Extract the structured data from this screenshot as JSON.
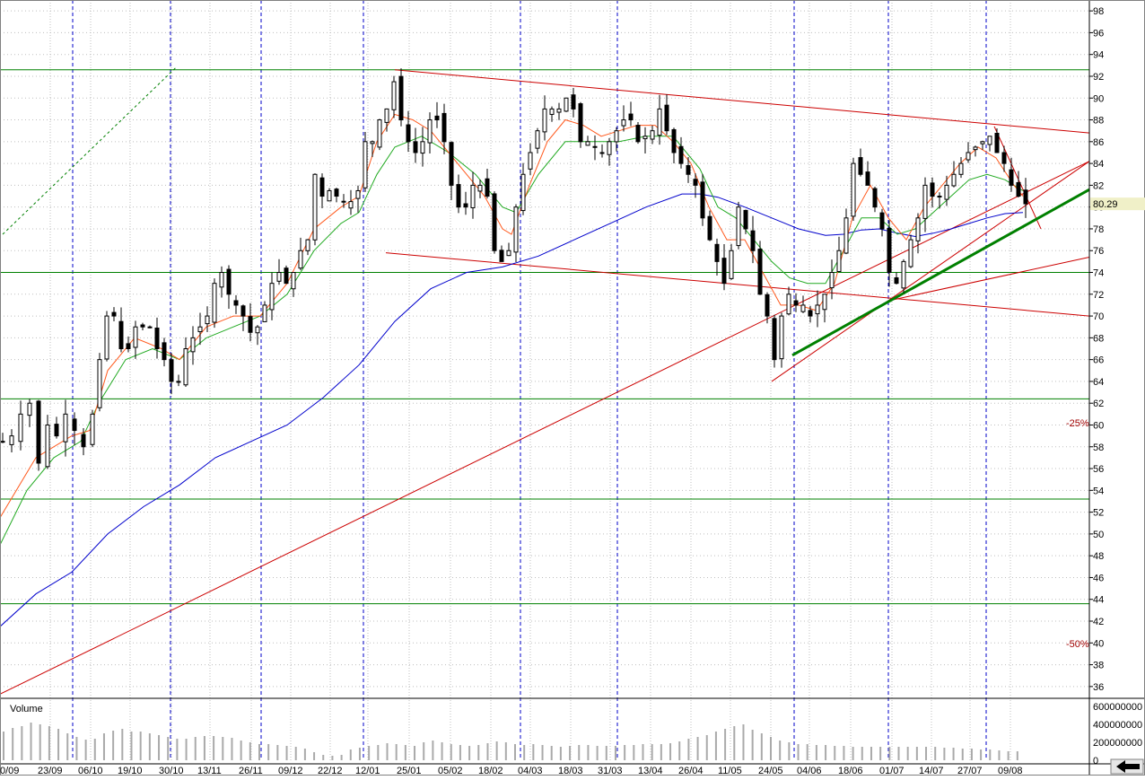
{
  "colors": {
    "background": "#ffffff",
    "border": "#808080",
    "dotted_grid": "#bfbfbf",
    "month_grid": "#0000c8",
    "horizontal_level": "#008000",
    "trendline": "#cc0000",
    "bold_trendline": "#008000",
    "ma_short": "#ff5a1e",
    "ma_mid": "#22aa22",
    "ma_long": "#0000cc",
    "candle": "#000000",
    "volume_bar": "#aaaaaa",
    "price_marker": "#f0f0c8"
  },
  "chart_data": {
    "type": "candlestick",
    "x_tick_labels": [
      "0/09",
      "23/09",
      "06/10",
      "19/10",
      "30/10",
      "13/11",
      "26/11",
      "09/12",
      "22/12",
      "12/01",
      "25/01",
      "05/02",
      "18/02",
      "04/03",
      "18/03",
      "31/03",
      "13/04",
      "26/04",
      "11/05",
      "24/05",
      "04/06",
      "18/06",
      "01/07",
      "14/07",
      "27/07",
      "09/08"
    ],
    "y_tick_labels": [
      "98",
      "96",
      "94",
      "92",
      "90",
      "88",
      "86",
      "84",
      "82",
      "80",
      "78",
      "76",
      "74",
      "72",
      "70",
      "68",
      "66",
      "64",
      "62",
      "60",
      "58",
      "56",
      "54",
      "52",
      "50",
      "48",
      "46",
      "44",
      "42",
      "40",
      "38",
      "36"
    ],
    "ylim": [
      35,
      99
    ],
    "grid": true,
    "last_price_label": "80.29",
    "last_price": 80.29,
    "annotations": [
      {
        "text": "-25%",
        "y": 60
      },
      {
        "text": "-50%",
        "y": 40
      }
    ],
    "horizontal_levels": [
      92.6,
      74.0,
      62.4,
      53.2,
      43.6
    ],
    "trendlines": [
      {
        "from": [
          0,
          35.3
        ],
        "to": [
          1214,
          84.2
        ],
        "style": "thin"
      },
      {
        "from": [
          860,
          64.0
        ],
        "to": [
          1214,
          84.2
        ],
        "style": "thin"
      },
      {
        "from": [
          990,
          71.4
        ],
        "to": [
          1214,
          75.4
        ],
        "style": "thin"
      },
      {
        "from": [
          440,
          92.6
        ],
        "to": [
          1214,
          86.8
        ],
        "style": "thin"
      },
      {
        "from": [
          430,
          75.8
        ],
        "to": [
          1214,
          70.0
        ],
        "style": "thin"
      },
      {
        "from": [
          1108,
          87.4
        ],
        "to": [
          1160,
          78.0
        ],
        "style": "thin"
      },
      {
        "from": [
          883,
          66.4
        ],
        "to": [
          1214,
          81.6
        ],
        "style": "bold"
      }
    ],
    "guide_line": {
      "from": [
        3,
        77.5
      ],
      "to": [
        196,
        92.8
      ]
    },
    "price_path": [
      [
        0,
        58.5
      ],
      [
        10,
        59
      ],
      [
        20,
        61
      ],
      [
        30,
        62
      ],
      [
        40,
        56.5
      ],
      [
        50,
        60
      ],
      [
        60,
        59
      ],
      [
        70,
        61
      ],
      [
        80,
        59.5
      ],
      [
        90,
        58
      ],
      [
        100,
        61
      ],
      [
        108,
        66
      ],
      [
        116,
        70
      ],
      [
        124,
        70
      ],
      [
        132,
        67
      ],
      [
        140,
        67
      ],
      [
        148,
        69
      ],
      [
        156,
        69
      ],
      [
        164,
        69
      ],
      [
        172,
        67
      ],
      [
        180,
        66
      ],
      [
        188,
        64
      ],
      [
        196,
        64
      ],
      [
        204,
        67
      ],
      [
        212,
        68
      ],
      [
        220,
        69
      ],
      [
        228,
        70
      ],
      [
        236,
        73
      ],
      [
        244,
        74
      ],
      [
        252,
        72
      ],
      [
        260,
        71
      ],
      [
        268,
        70
      ],
      [
        276,
        68.5
      ],
      [
        284,
        69
      ],
      [
        292,
        71
      ],
      [
        300,
        73
      ],
      [
        308,
        74
      ],
      [
        316,
        73
      ],
      [
        324,
        74
      ],
      [
        332,
        76
      ],
      [
        340,
        77
      ],
      [
        348,
        83
      ],
      [
        356,
        81
      ],
      [
        364,
        81.5
      ],
      [
        372,
        81
      ],
      [
        380,
        80.5
      ],
      [
        388,
        80.5
      ],
      [
        396,
        81.5
      ],
      [
        404,
        86
      ],
      [
        412,
        86
      ],
      [
        420,
        88
      ],
      [
        428,
        89
      ],
      [
        436,
        91.5
      ],
      [
        444,
        88
      ],
      [
        452,
        86
      ],
      [
        460,
        85
      ],
      [
        468,
        86
      ],
      [
        476,
        88
      ],
      [
        484,
        88
      ],
      [
        492,
        86
      ],
      [
        500,
        82
      ],
      [
        508,
        80
      ],
      [
        516,
        80
      ],
      [
        524,
        82
      ],
      [
        532,
        82
      ],
      [
        540,
        81
      ],
      [
        548,
        76
      ],
      [
        556,
        75
      ],
      [
        564,
        76
      ],
      [
        572,
        80
      ],
      [
        580,
        83
      ],
      [
        588,
        85
      ],
      [
        596,
        87
      ],
      [
        604,
        89
      ],
      [
        612,
        89
      ],
      [
        620,
        89
      ],
      [
        628,
        90
      ],
      [
        636,
        89
      ],
      [
        644,
        86
      ],
      [
        652,
        86
      ],
      [
        660,
        85.5
      ],
      [
        668,
        85
      ],
      [
        676,
        86
      ],
      [
        684,
        87
      ],
      [
        692,
        88
      ],
      [
        700,
        88
      ],
      [
        708,
        86
      ],
      [
        716,
        86.5
      ],
      [
        724,
        87
      ],
      [
        732,
        89
      ],
      [
        740,
        87
      ],
      [
        748,
        85
      ],
      [
        756,
        84
      ],
      [
        764,
        83
      ],
      [
        772,
        82
      ],
      [
        780,
        79
      ],
      [
        788,
        77
      ],
      [
        796,
        75
      ],
      [
        804,
        73
      ],
      [
        812,
        76
      ],
      [
        820,
        80
      ],
      [
        828,
        78
      ],
      [
        836,
        76
      ],
      [
        844,
        72
      ],
      [
        852,
        70
      ],
      [
        860,
        66
      ],
      [
        868,
        70
      ],
      [
        876,
        72
      ],
      [
        884,
        71
      ],
      [
        892,
        71
      ],
      [
        900,
        70
      ],
      [
        908,
        71
      ],
      [
        916,
        72
      ],
      [
        924,
        74
      ],
      [
        932,
        76
      ],
      [
        940,
        79
      ],
      [
        948,
        84
      ],
      [
        956,
        83
      ],
      [
        964,
        82
      ],
      [
        972,
        80
      ],
      [
        980,
        78
      ],
      [
        988,
        74
      ],
      [
        996,
        73
      ],
      [
        1004,
        75
      ],
      [
        1012,
        77
      ],
      [
        1020,
        79
      ],
      [
        1028,
        82
      ],
      [
        1036,
        81
      ],
      [
        1044,
        81
      ],
      [
        1052,
        82
      ],
      [
        1060,
        83
      ],
      [
        1068,
        84
      ],
      [
        1076,
        85
      ],
      [
        1084,
        85.5
      ],
      [
        1092,
        86
      ],
      [
        1100,
        86.5
      ],
      [
        1108,
        85
      ],
      [
        1116,
        84
      ],
      [
        1124,
        82
      ],
      [
        1132,
        81
      ],
      [
        1140,
        80.3
      ]
    ],
    "ma_short_path": [
      [
        0,
        51.5
      ],
      [
        40,
        57
      ],
      [
        80,
        59
      ],
      [
        100,
        59.5
      ],
      [
        120,
        65
      ],
      [
        150,
        68
      ],
      [
        180,
        67
      ],
      [
        200,
        66
      ],
      [
        230,
        69
      ],
      [
        260,
        70
      ],
      [
        290,
        70
      ],
      [
        320,
        73
      ],
      [
        350,
        78
      ],
      [
        380,
        80
      ],
      [
        400,
        81
      ],
      [
        420,
        86
      ],
      [
        440,
        88.5
      ],
      [
        460,
        88
      ],
      [
        480,
        87
      ],
      [
        500,
        85
      ],
      [
        520,
        83
      ],
      [
        540,
        81
      ],
      [
        560,
        78
      ],
      [
        570,
        77.5
      ],
      [
        590,
        82
      ],
      [
        610,
        86
      ],
      [
        630,
        88
      ],
      [
        650,
        87.5
      ],
      [
        670,
        86.5
      ],
      [
        690,
        87
      ],
      [
        710,
        87.5
      ],
      [
        730,
        87.5
      ],
      [
        750,
        86
      ],
      [
        770,
        84
      ],
      [
        790,
        80
      ],
      [
        810,
        77
      ],
      [
        830,
        77
      ],
      [
        850,
        74
      ],
      [
        870,
        71
      ],
      [
        890,
        71
      ],
      [
        910,
        70.5
      ],
      [
        930,
        73
      ],
      [
        950,
        79
      ],
      [
        970,
        82
      ],
      [
        990,
        79
      ],
      [
        1010,
        77
      ],
      [
        1030,
        80
      ],
      [
        1050,
        82
      ],
      [
        1070,
        84
      ],
      [
        1090,
        85.5
      ],
      [
        1110,
        84.5
      ],
      [
        1130,
        82
      ],
      [
        1140,
        81
      ]
    ],
    "ma_mid_path": [
      [
        0,
        49
      ],
      [
        30,
        54
      ],
      [
        60,
        57
      ],
      [
        90,
        58.5
      ],
      [
        110,
        62
      ],
      [
        140,
        66
      ],
      [
        170,
        67
      ],
      [
        200,
        66
      ],
      [
        230,
        68
      ],
      [
        260,
        69
      ],
      [
        290,
        70
      ],
      [
        320,
        72
      ],
      [
        350,
        76
      ],
      [
        380,
        78.5
      ],
      [
        400,
        79.5
      ],
      [
        420,
        83
      ],
      [
        440,
        85.5
      ],
      [
        470,
        86.5
      ],
      [
        500,
        85
      ],
      [
        530,
        83
      ],
      [
        560,
        80
      ],
      [
        575,
        79.5
      ],
      [
        600,
        83
      ],
      [
        630,
        86
      ],
      [
        660,
        86
      ],
      [
        690,
        86
      ],
      [
        720,
        86.5
      ],
      [
        750,
        86.5
      ],
      [
        780,
        83.5
      ],
      [
        800,
        80
      ],
      [
        820,
        79
      ],
      [
        840,
        77
      ],
      [
        860,
        75
      ],
      [
        880,
        73.5
      ],
      [
        900,
        73
      ],
      [
        920,
        73
      ],
      [
        940,
        76
      ],
      [
        960,
        79
      ],
      [
        980,
        79
      ],
      [
        1000,
        77.5
      ],
      [
        1020,
        78
      ],
      [
        1040,
        79.5
      ],
      [
        1060,
        81
      ],
      [
        1080,
        82.5
      ],
      [
        1100,
        83
      ],
      [
        1120,
        82.5
      ],
      [
        1140,
        81.5
      ]
    ],
    "ma_long_path": [
      [
        0,
        41.5
      ],
      [
        40,
        44.5
      ],
      [
        80,
        46.5
      ],
      [
        120,
        50
      ],
      [
        160,
        52.5
      ],
      [
        200,
        54.5
      ],
      [
        240,
        57
      ],
      [
        280,
        58.5
      ],
      [
        320,
        60
      ],
      [
        360,
        62.5
      ],
      [
        400,
        65.5
      ],
      [
        440,
        69.5
      ],
      [
        480,
        72.5
      ],
      [
        520,
        74
      ],
      [
        560,
        74.5
      ],
      [
        600,
        75.5
      ],
      [
        640,
        77
      ],
      [
        680,
        78.5
      ],
      [
        720,
        80
      ],
      [
        760,
        81.2
      ],
      [
        780,
        81.2
      ],
      [
        800,
        80.9
      ],
      [
        830,
        80
      ],
      [
        860,
        79
      ],
      [
        890,
        78
      ],
      [
        920,
        77.4
      ],
      [
        940,
        77.5
      ],
      [
        960,
        77.9
      ],
      [
        980,
        78
      ],
      [
        1000,
        77.6
      ],
      [
        1020,
        77.3
      ],
      [
        1040,
        77.6
      ],
      [
        1060,
        78
      ],
      [
        1080,
        78.5
      ],
      [
        1100,
        79
      ],
      [
        1120,
        79.4
      ],
      [
        1140,
        79.5
      ]
    ],
    "volume": {
      "label": "Volume",
      "tick_labels": [
        "600000000",
        "400000000",
        "200000000",
        "0"
      ],
      "ylim": [
        0,
        600000000
      ],
      "values": [
        320000000,
        360000000,
        380000000,
        420000000,
        400000000,
        380000000,
        350000000,
        300000000,
        260000000,
        230000000,
        240000000,
        300000000,
        330000000,
        350000000,
        320000000,
        320000000,
        300000000,
        280000000,
        260000000,
        240000000,
        240000000,
        260000000,
        270000000,
        270000000,
        260000000,
        250000000,
        220000000,
        200000000,
        180000000,
        180000000,
        170000000,
        160000000,
        150000000,
        130000000,
        90000000,
        60000000,
        50000000,
        60000000,
        120000000,
        140000000,
        160000000,
        170000000,
        190000000,
        180000000,
        170000000,
        160000000,
        200000000,
        220000000,
        200000000,
        180000000,
        170000000,
        160000000,
        170000000,
        190000000,
        210000000,
        200000000,
        180000000,
        170000000,
        180000000,
        170000000,
        160000000,
        150000000,
        160000000,
        170000000,
        170000000,
        160000000,
        160000000,
        160000000,
        170000000,
        170000000,
        180000000,
        180000000,
        180000000,
        190000000,
        210000000,
        240000000,
        260000000,
        280000000,
        320000000,
        350000000,
        380000000,
        400000000,
        340000000,
        300000000,
        260000000,
        220000000,
        200000000,
        180000000,
        180000000,
        170000000,
        170000000,
        160000000,
        160000000,
        150000000,
        150000000,
        150000000,
        150000000,
        150000000,
        150000000,
        150000000,
        150000000,
        150000000,
        150000000,
        140000000,
        140000000,
        130000000,
        130000000,
        120000000,
        120000000,
        110000000,
        100000000,
        100000000
      ]
    }
  }
}
